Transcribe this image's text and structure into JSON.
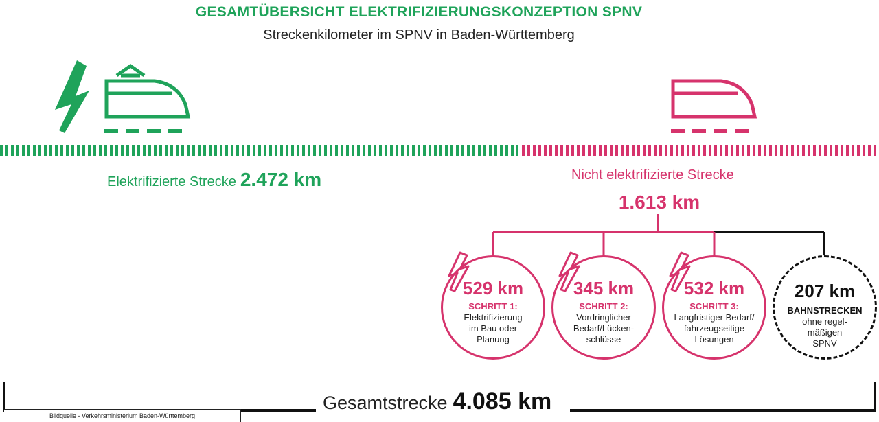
{
  "colors": {
    "green": "#1fa35a",
    "pink": "#d6336c",
    "dark": "#111111"
  },
  "title": "GESAMTÜBERSICHT ELEKTRIFIZIERUNGSKONZEPTION SPNV",
  "subtitle": "Streckenkilometer im SPNV in Baden-Württemberg",
  "electrified": {
    "label": "Elektrifizierte Strecke",
    "value": "2.472 km"
  },
  "non_electrified": {
    "label": "Nicht elektrifizierte Strecke",
    "value": "1.613 km"
  },
  "steps": [
    {
      "km": "529 km",
      "step": "SCHRITT 1:",
      "desc": [
        "Elektrifizierung",
        "im Bau oder",
        "Planung"
      ]
    },
    {
      "km": "345 km",
      "step": "SCHRITT 2:",
      "desc": [
        "Vordringlicher",
        "Bedarf/Lücken-",
        "schlüsse"
      ]
    },
    {
      "km": "532 km",
      "step": "SCHRITT 3:",
      "desc": [
        "Langfristiger Bedarf/",
        "fahrzeugseitige",
        "Lösungen"
      ]
    }
  ],
  "other": {
    "km": "207 km",
    "title": "BAHNSTRECKEN",
    "desc": [
      "ohne regel-",
      "mäßigen",
      "SPNV"
    ]
  },
  "total": {
    "label": "Gesamtstrecke",
    "value": "4.085 km"
  },
  "source": "Bildquelle - Verkehrsministerium Baden-Württemberg"
}
